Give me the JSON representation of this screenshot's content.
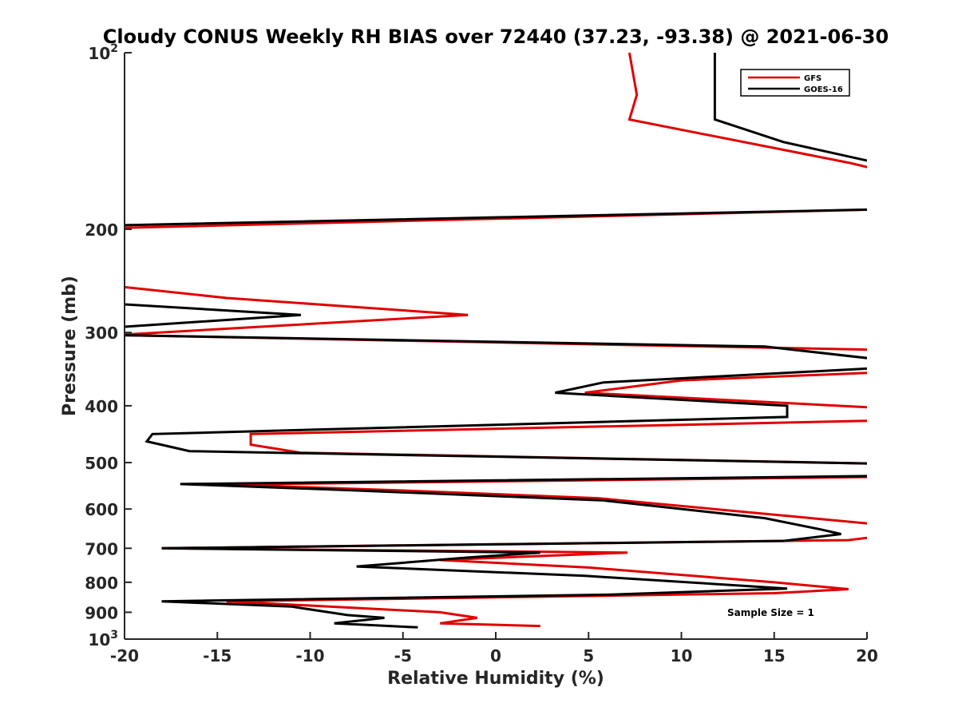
{
  "chart_data": {
    "type": "line",
    "title": "Cloudy CONUS Weekly RH BIAS over 72440 (37.23, -93.38) @ 2021-06-30",
    "xlabel": "Relative Humidity (%)",
    "ylabel": "Pressure (mb)",
    "xlim": [
      -20,
      20
    ],
    "ylim": [
      100,
      1000
    ],
    "y_scale": "log",
    "y_direction": "reversed",
    "grid": false,
    "legend_position": "top-right",
    "x_ticks": [
      -20,
      -15,
      -10,
      -5,
      0,
      5,
      10,
      15,
      20
    ],
    "x_tick_labels": [
      "-20",
      "-15",
      "-10",
      "-5",
      "0",
      "5",
      "10",
      "15",
      "20"
    ],
    "y_ticks": [
      100,
      200,
      300,
      400,
      500,
      600,
      700,
      800,
      900,
      1000
    ],
    "y_tick_labels": [
      {
        "base": "10",
        "exp": "2"
      },
      {
        "base": "200"
      },
      {
        "base": "300"
      },
      {
        "base": "400"
      },
      {
        "base": "500"
      },
      {
        "base": "600"
      },
      {
        "base": "700"
      },
      {
        "base": "800"
      },
      {
        "base": "900"
      },
      {
        "base": "10",
        "exp": "3"
      }
    ],
    "annotation": "Sample Size = 1",
    "series": [
      {
        "name": "GFS",
        "color": "#e00000",
        "points": [
          [
            7.2,
            100
          ],
          [
            7.6,
            118
          ],
          [
            7.2,
            130
          ],
          [
            19.0,
            154
          ],
          [
            20.5,
            158
          ],
          [
            20.6,
            185
          ],
          [
            -20.5,
            199
          ],
          [
            -20.5,
            250
          ],
          [
            -14.5,
            262
          ],
          [
            -1.5,
            280
          ],
          [
            -20.5,
            303
          ],
          [
            20.5,
            321
          ],
          [
            20.5,
            351
          ],
          [
            10.0,
            362
          ],
          [
            4.8,
            380
          ],
          [
            20.5,
            403
          ],
          [
            20.5,
            424
          ],
          [
            -13.2,
            447
          ],
          [
            -13.2,
            466
          ],
          [
            -10.5,
            481
          ],
          [
            20.5,
            502
          ],
          [
            20.5,
            529
          ],
          [
            -14.5,
            545
          ],
          [
            -5.0,
            558
          ],
          [
            5.5,
            575
          ],
          [
            20.5,
            637
          ],
          [
            20.5,
            669
          ],
          [
            19.0,
            678
          ],
          [
            -18.0,
            700
          ],
          [
            7.1,
            712
          ],
          [
            -3.0,
            733
          ],
          [
            5.0,
            755
          ],
          [
            15.0,
            800
          ],
          [
            19.0,
            822
          ],
          [
            15.0,
            835
          ],
          [
            -14.5,
            862
          ],
          [
            -3.0,
            900
          ],
          [
            -1.0,
            920
          ],
          [
            -3.0,
            940
          ],
          [
            2.4,
            950
          ]
        ]
      },
      {
        "name": "GOES-16",
        "color": "#000000",
        "points": [
          [
            11.8,
            100
          ],
          [
            11.8,
            130
          ],
          [
            15.5,
            142
          ],
          [
            20.5,
            154
          ],
          [
            20.6,
            185
          ],
          [
            -20.5,
            197
          ],
          [
            -20.5,
            268
          ],
          [
            -10.5,
            280
          ],
          [
            -20.5,
            294
          ],
          [
            -20.5,
            303
          ],
          [
            14.5,
            317
          ],
          [
            20.5,
            333
          ],
          [
            20.5,
            345
          ],
          [
            5.8,
            365
          ],
          [
            3.2,
            380
          ],
          [
            15.7,
            400
          ],
          [
            15.7,
            418
          ],
          [
            -18.5,
            447
          ],
          [
            -18.8,
            460
          ],
          [
            -16.5,
            478
          ],
          [
            20.5,
            502
          ],
          [
            20.5,
            527
          ],
          [
            -17.0,
            544
          ],
          [
            -8.0,
            557
          ],
          [
            5.8,
            580
          ],
          [
            14.5,
            622
          ],
          [
            17.5,
            650
          ],
          [
            18.6,
            662
          ],
          [
            15.5,
            680
          ],
          [
            -18.0,
            700
          ],
          [
            2.4,
            712
          ],
          [
            -1.5,
            726
          ],
          [
            -7.5,
            752
          ],
          [
            4.8,
            780
          ],
          [
            15.7,
            820
          ],
          [
            6.0,
            840
          ],
          [
            -18.0,
            862
          ],
          [
            -11.0,
            880
          ],
          [
            -8.0,
            910
          ],
          [
            -6.0,
            920
          ],
          [
            -8.7,
            940
          ],
          [
            -4.2,
            955
          ]
        ]
      }
    ]
  }
}
